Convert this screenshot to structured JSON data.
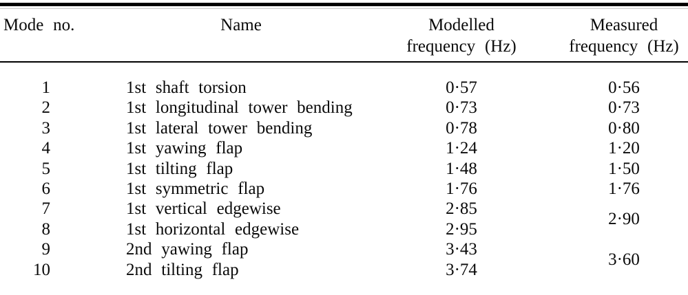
{
  "table": {
    "header": {
      "mode_no": "Mode no.",
      "name": "Name",
      "modelled_line1": "Modelled",
      "modelled_line2": "frequency (Hz)",
      "measured_line1": "Measured",
      "measured_line2": "frequency (Hz)"
    },
    "rows": [
      {
        "mode": "1",
        "name": "1st shaft torsion",
        "modelled": "0·57",
        "measured": "0·56"
      },
      {
        "mode": "2",
        "name": "1st longitudinal tower bending",
        "modelled": "0·73",
        "measured": "0·73"
      },
      {
        "mode": "3",
        "name": "1st lateral tower bending",
        "modelled": "0·78",
        "measured": "0·80"
      },
      {
        "mode": "4",
        "name": "1st yawing flap",
        "modelled": "1·24",
        "measured": "1·20"
      },
      {
        "mode": "5",
        "name": "1st tilting flap",
        "modelled": "1·48",
        "measured": "1·50"
      },
      {
        "mode": "6",
        "name": "1st symmetric flap",
        "modelled": "1·76",
        "measured": "1·76"
      },
      {
        "mode": "7",
        "name": "1st vertical edgewise",
        "modelled": "2·85",
        "measured": "2·90",
        "measured_rowspan": 2
      },
      {
        "mode": "8",
        "name": "1st horizontal edgewise",
        "modelled": "2·95"
      },
      {
        "mode": "9",
        "name": "2nd yawing flap",
        "modelled": "3·43",
        "measured": "3·60",
        "measured_rowspan": 2
      },
      {
        "mode": "10",
        "name": "2nd tilting flap",
        "modelled": "3·74"
      }
    ],
    "colors": {
      "text": "#0a0a0a",
      "rule": "#000000"
    }
  }
}
